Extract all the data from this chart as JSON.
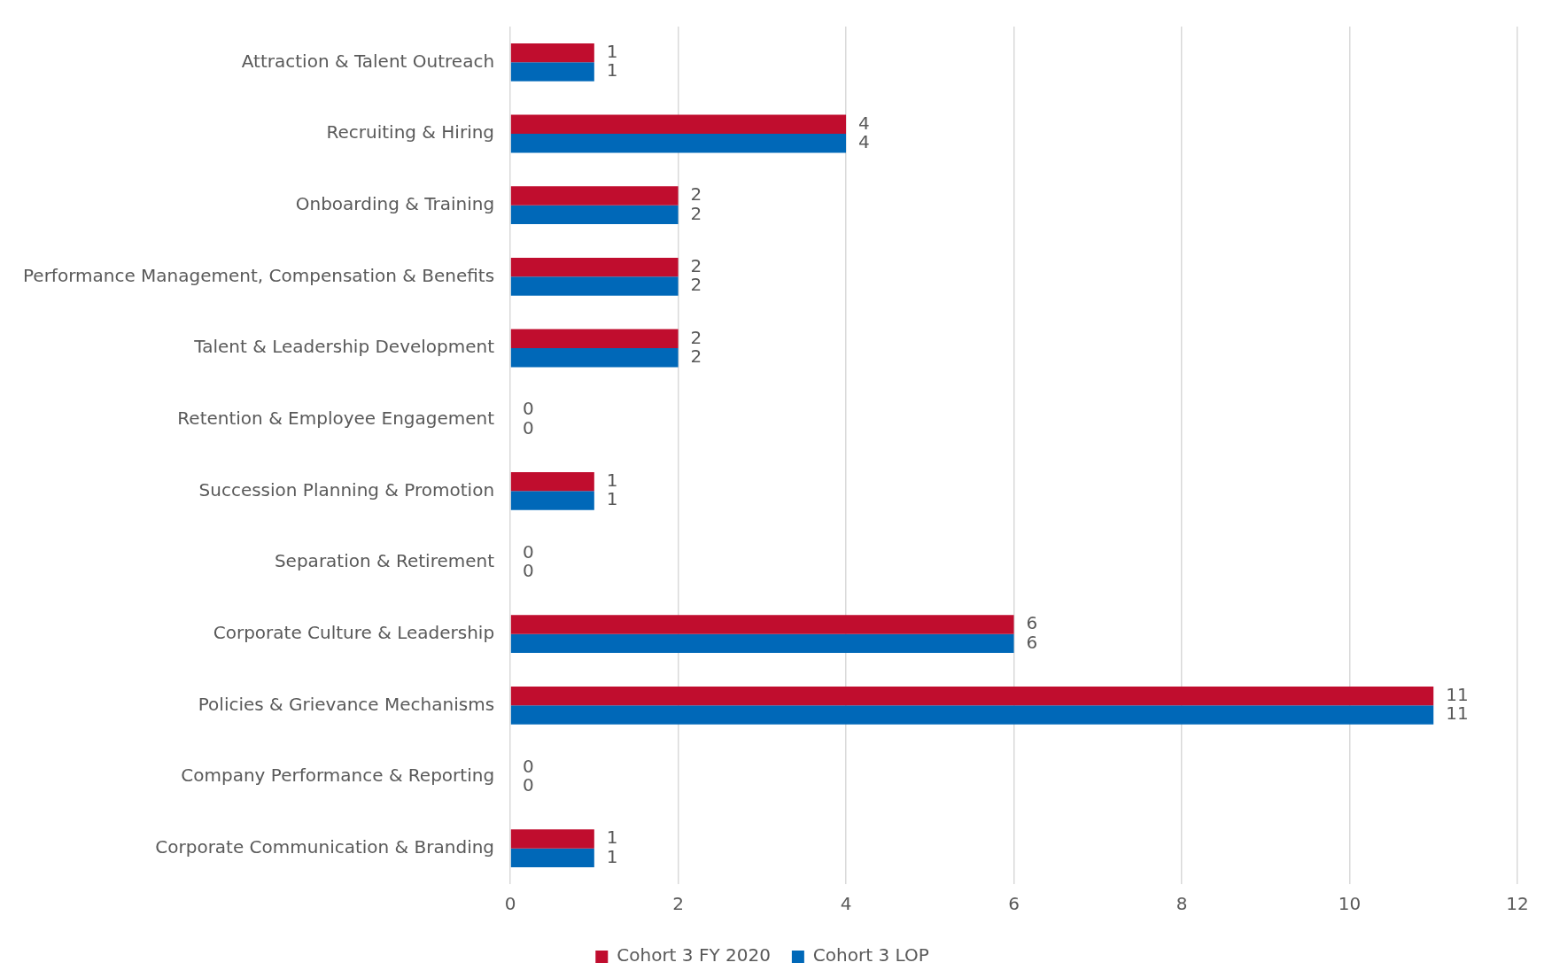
{
  "chart_data": {
    "type": "bar",
    "orientation": "horizontal",
    "categories": [
      "Attraction & Talent Outreach",
      "Recruiting & Hiring",
      "Onboarding & Training",
      "Performance Management, Compensation & Benefits",
      "Talent & Leadership Development",
      "Retention & Employee Engagement",
      "Succession Planning & Promotion",
      "Separation & Retirement",
      "Corporate Culture & Leadership",
      "Policies & Grievance Mechanisms",
      "Company Performance & Reporting",
      "Corporate Communication & Branding"
    ],
    "series": [
      {
        "name": "Cohort 3 FY 2020",
        "color": "#c00d2e",
        "values": [
          1,
          4,
          2,
          2,
          2,
          0,
          1,
          0,
          6,
          11,
          0,
          1
        ]
      },
      {
        "name": "Cohort 3 LOP",
        "color": "#0068b8",
        "values": [
          1,
          4,
          2,
          2,
          2,
          0,
          1,
          0,
          6,
          11,
          0,
          1
        ]
      }
    ],
    "xlim": [
      0,
      12
    ],
    "xticks": [
      0,
      2,
      4,
      6,
      8,
      10,
      12
    ],
    "grid": "x",
    "legend": "bottom",
    "data_labels": true
  }
}
